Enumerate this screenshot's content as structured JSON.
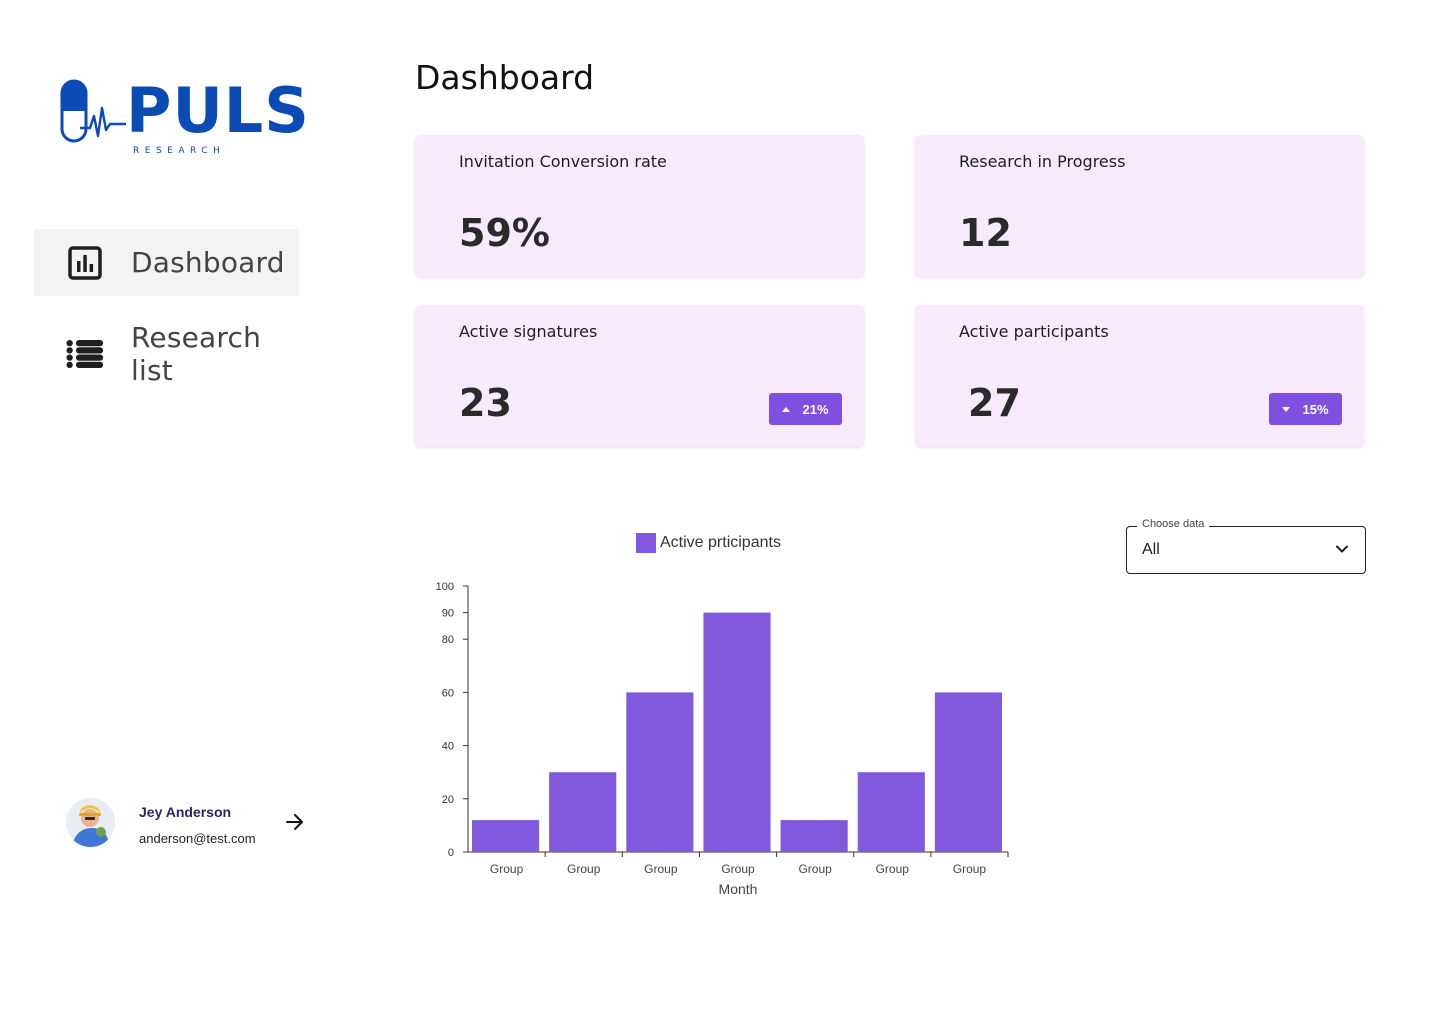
{
  "brand": {
    "name": "PULS",
    "sub": "RESEARCH"
  },
  "sidebar": {
    "items": [
      {
        "label": "Dashboard",
        "icon": "bar-chart-icon",
        "active": true
      },
      {
        "label": "Research list",
        "icon": "list-icon",
        "active": false
      }
    ]
  },
  "user": {
    "name": "Jey Anderson",
    "email": "anderson@test.com"
  },
  "header": {
    "title": "Dashboard"
  },
  "cards": [
    {
      "label": "Invitation Conversion rate",
      "value": "59%"
    },
    {
      "label": "Research in Progress",
      "value": "12"
    },
    {
      "label": "Active signatures",
      "value": "23",
      "badge": "21%",
      "trend": "up"
    },
    {
      "label": "Active participants",
      "value": "27",
      "badge": "15%",
      "trend": "down"
    }
  ],
  "select": {
    "legend": "Choose data",
    "value": "All"
  },
  "colors": {
    "accent": "#8159dd",
    "card_bg": "#f6eafc",
    "brand": "#0a4bb5"
  },
  "chart_data": {
    "type": "bar",
    "categories": [
      "Group",
      "Group",
      "Group",
      "Group",
      "Group",
      "Group",
      "Group"
    ],
    "series": [
      {
        "name": "Active prticipants",
        "values": [
          12,
          30,
          60,
          90,
          12,
          30,
          60
        ]
      }
    ],
    "xlabel": "Month",
    "ylabel": "",
    "yticks": [
      0,
      20,
      40,
      60,
      80,
      90,
      100
    ],
    "ylim": [
      0,
      100
    ],
    "legend": "top",
    "grid": false
  }
}
